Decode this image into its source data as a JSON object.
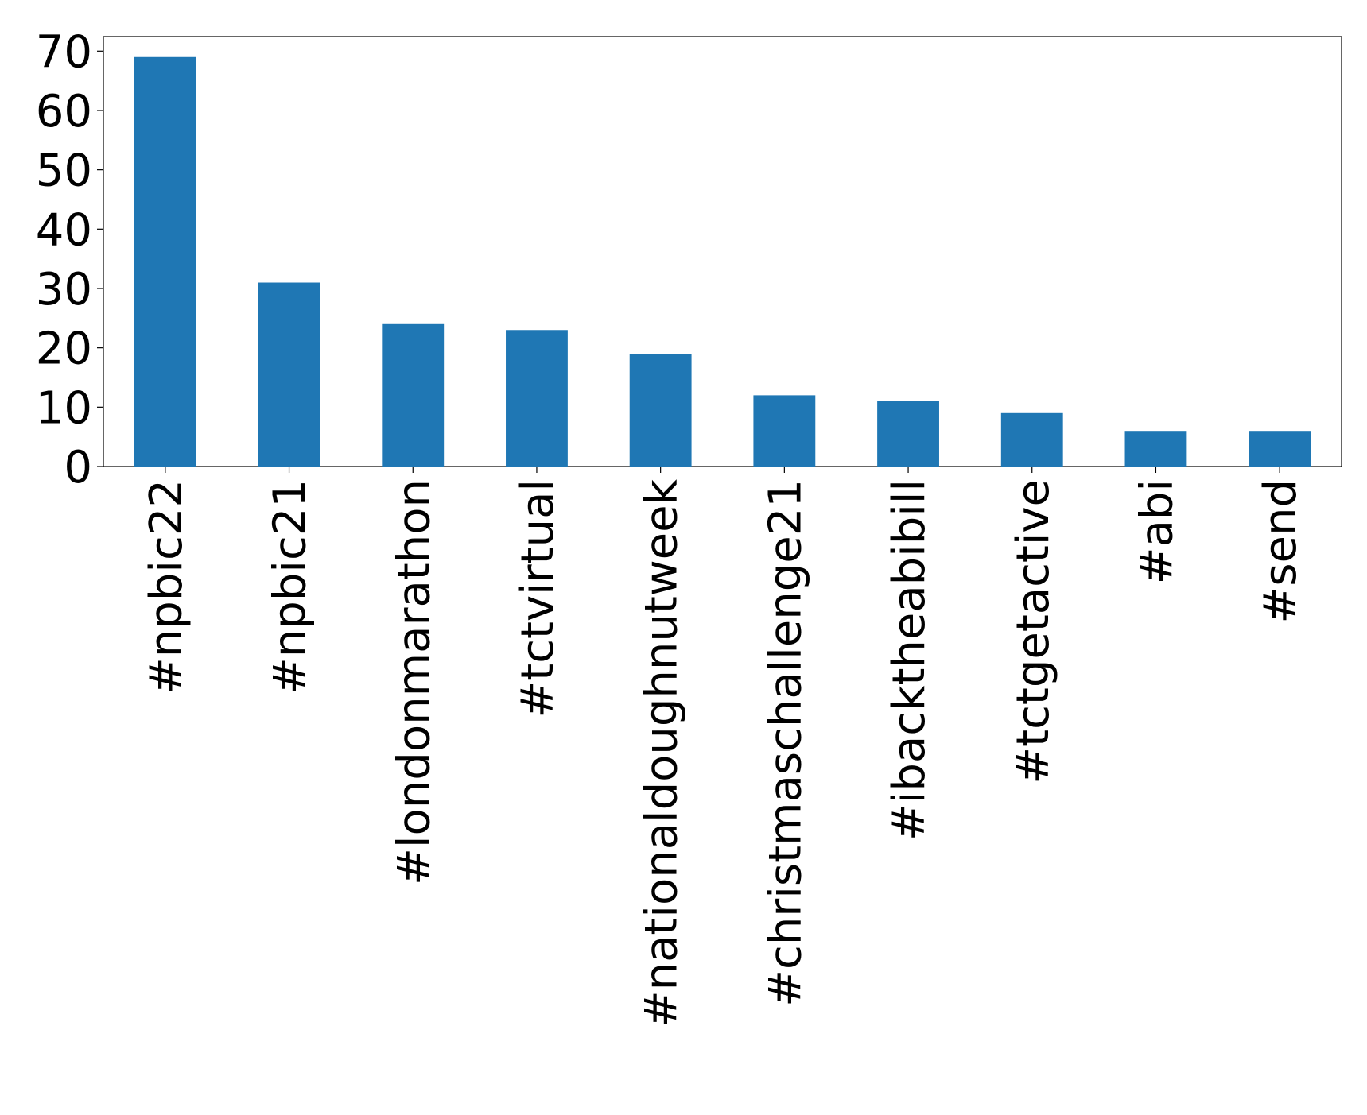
{
  "chart_data": {
    "type": "bar",
    "categories": [
      "#npbic22",
      "#npbic21",
      "#londonmarathon",
      "#tctvirtual",
      "#nationaldoughnutweek",
      "#christmaschallenge21",
      "#ibacktheabibill",
      "#tctgetactive",
      "#abi",
      "#send"
    ],
    "values": [
      69,
      31,
      24,
      23,
      19,
      12,
      11,
      9,
      6,
      6
    ],
    "color": "#1f77b4",
    "ylim": [
      0,
      72.45
    ],
    "yticks": [
      0,
      10,
      20,
      30,
      40,
      50,
      60,
      70
    ],
    "grid": false
  }
}
